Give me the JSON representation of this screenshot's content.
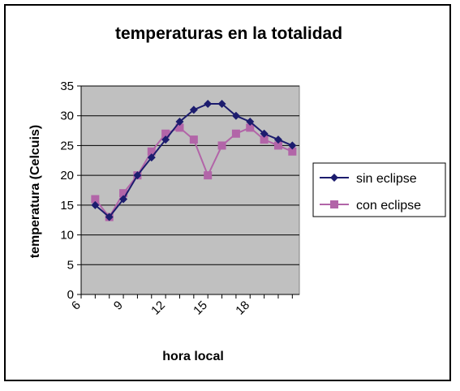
{
  "colors": {
    "plot_background": "#c0c0c0",
    "gridline": "#000000",
    "series_sin_eclipse": "#1c1c6e",
    "series_con_eclipse": "#b265a8"
  },
  "chart_data": {
    "type": "line",
    "title": "temperaturas en la totalidad",
    "xlabel": "hora local",
    "ylabel": "temperatura (Celcuis)",
    "x": [
      7,
      8,
      9,
      10,
      11,
      12,
      13,
      14,
      15,
      16,
      17,
      18,
      19,
      20,
      21
    ],
    "x_tick_labels": [
      "6",
      "9",
      "12",
      "15",
      "18"
    ],
    "x_tick_values": [
      6,
      9,
      12,
      15,
      18
    ],
    "xlim": [
      6,
      21.5
    ],
    "ylim": [
      0,
      35
    ],
    "y_tick_labels": [
      "0",
      "5",
      "10",
      "15",
      "20",
      "25",
      "30",
      "35"
    ],
    "y_tick_values": [
      0,
      5,
      10,
      15,
      20,
      25,
      30,
      35
    ],
    "grid": "horizontal",
    "legend_position": "right",
    "series": [
      {
        "name": "sin eclipse",
        "marker": "diamond",
        "values": [
          15,
          13,
          16,
          20,
          23,
          26,
          29,
          31,
          32,
          32,
          30,
          29,
          27,
          26,
          25
        ]
      },
      {
        "name": "con eclipse",
        "marker": "square",
        "values": [
          16,
          13,
          17,
          20,
          24,
          27,
          28,
          26,
          20,
          25,
          27,
          28,
          26,
          25,
          24
        ]
      }
    ]
  }
}
